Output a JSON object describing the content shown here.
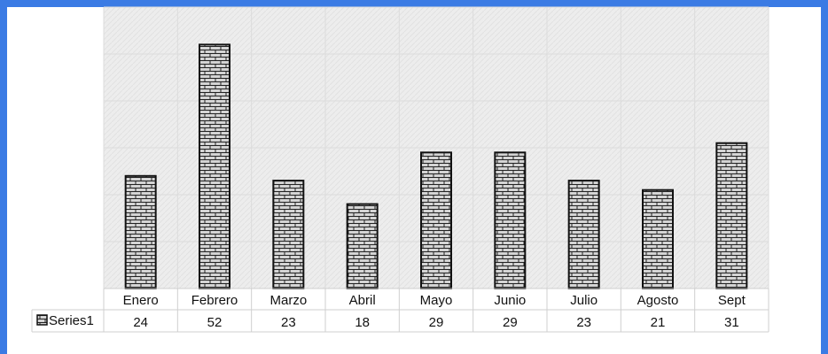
{
  "chart_data": {
    "type": "bar",
    "categories": [
      "Enero",
      "Febrero",
      "Marzo",
      "Abril",
      "Mayo",
      "Junio",
      "Julio",
      "Agosto",
      "Sept"
    ],
    "series": [
      {
        "name": "Series1",
        "values": [
          24,
          52,
          23,
          18,
          29,
          29,
          23,
          21,
          31
        ]
      }
    ],
    "ylim": [
      0,
      60
    ],
    "grid": true,
    "legend": "data-table-left",
    "colors": {
      "frame": "#3b7be4",
      "bar_fill": "#cfcfcf",
      "bar_stroke": "#111111",
      "plot_bg": "#ececec",
      "grid": "#dcdcdc"
    }
  }
}
